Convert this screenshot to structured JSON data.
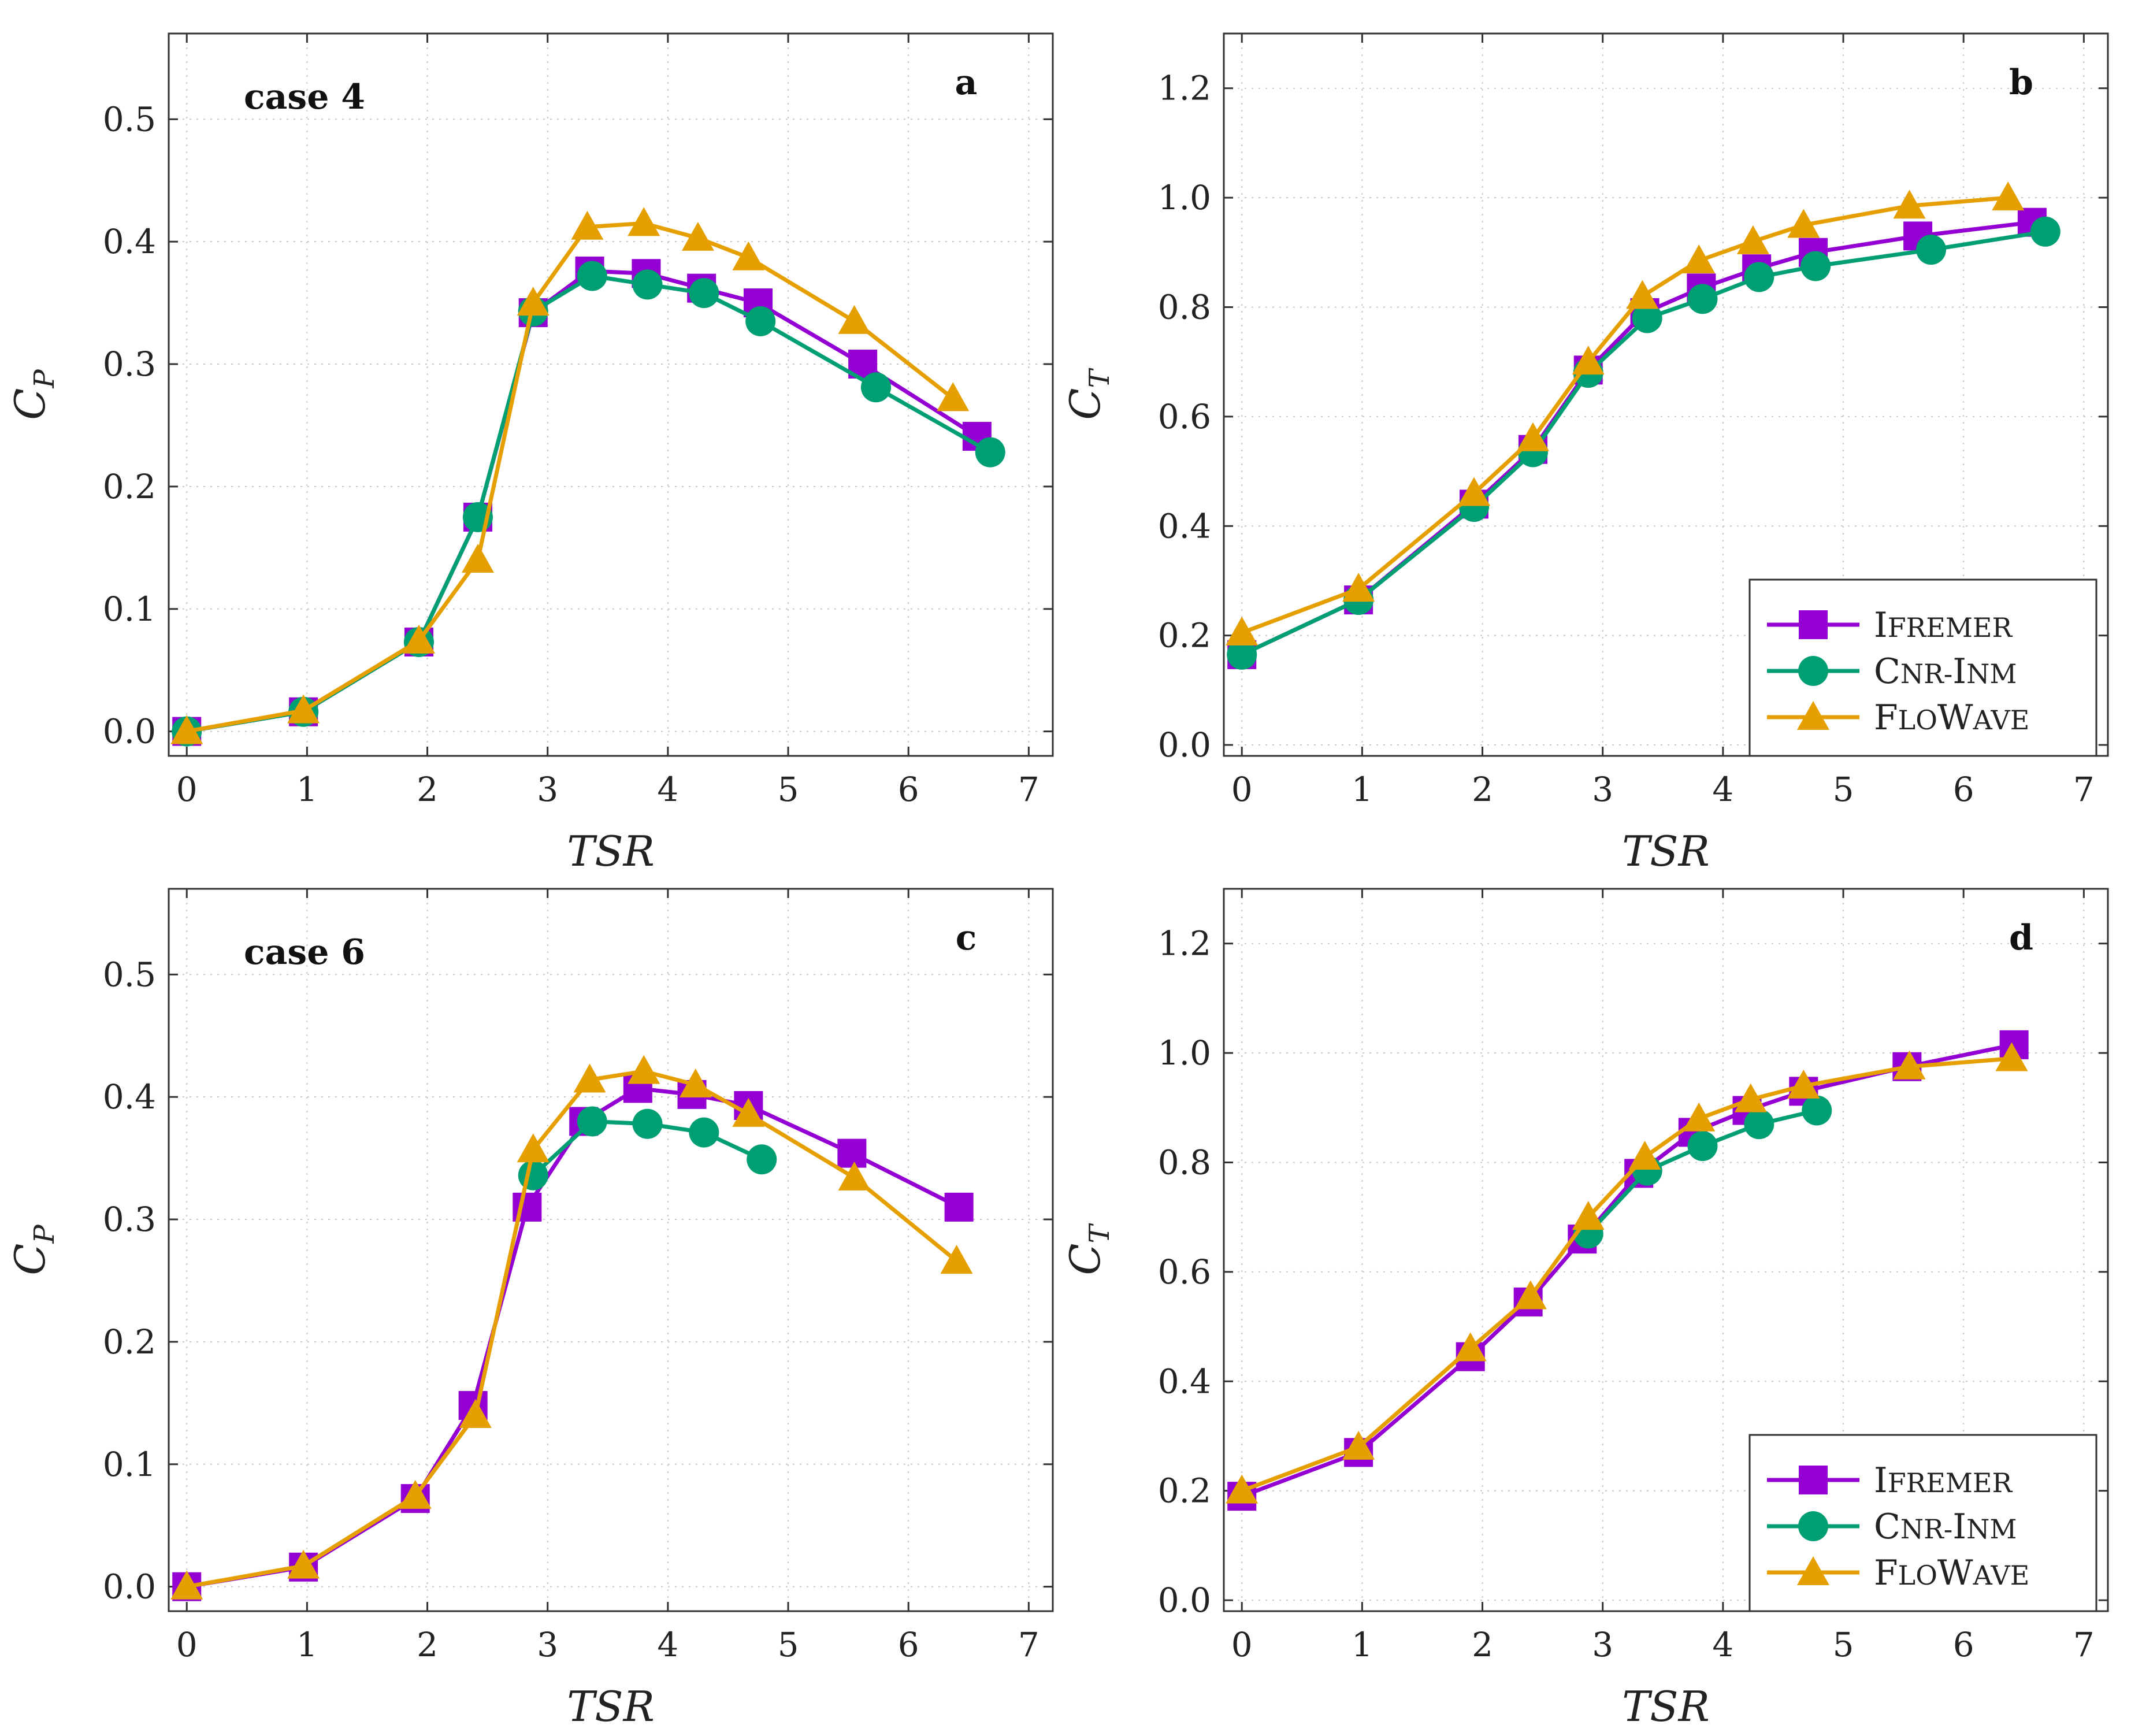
{
  "colors": {
    "Ifremer": "#9400D3",
    "Cnr-Inm": "#009E73",
    "FloWave": "#E69F00"
  },
  "chart_data": [
    {
      "type": "line",
      "panel": "a",
      "annotation": "case 4",
      "xlabel": "TSR",
      "ylabel": "C_P",
      "xlim": [
        -0.15,
        7.2
      ],
      "ylim": [
        -0.02,
        0.57
      ],
      "xticks": [
        0,
        1,
        2,
        3,
        4,
        5,
        6,
        7
      ],
      "yticks": [
        0.0,
        0.1,
        0.2,
        0.3,
        0.4,
        0.5
      ],
      "ytick_labels": [
        "0.0",
        "0.1",
        "0.2",
        "0.3",
        "0.4",
        "0.5"
      ],
      "grid": true,
      "legend": null,
      "series": [
        {
          "name": "Ifremer",
          "marker": "square",
          "x": [
            0,
            0.97,
            1.93,
            2.42,
            2.88,
            3.35,
            3.82,
            4.28,
            4.75,
            5.62,
            6.57
          ],
          "y": [
            0.0,
            0.016,
            0.073,
            0.175,
            0.342,
            0.376,
            0.374,
            0.362,
            0.35,
            0.3,
            0.241
          ]
        },
        {
          "name": "Cnr-Inm",
          "marker": "circle",
          "x": [
            0,
            0.97,
            1.93,
            2.42,
            2.88,
            3.37,
            3.83,
            4.3,
            4.77,
            5.73,
            6.68
          ],
          "y": [
            0.0,
            0.016,
            0.073,
            0.175,
            0.343,
            0.372,
            0.365,
            0.358,
            0.335,
            0.281,
            0.228
          ]
        },
        {
          "name": "FloWave",
          "marker": "triangle",
          "x": [
            0,
            0.97,
            1.93,
            2.42,
            2.88,
            3.33,
            3.8,
            4.25,
            4.67,
            5.55,
            6.37
          ],
          "y": [
            0.0,
            0.017,
            0.074,
            0.14,
            0.35,
            0.412,
            0.415,
            0.403,
            0.387,
            0.335,
            0.272
          ]
        }
      ]
    },
    {
      "type": "line",
      "panel": "b",
      "xlabel": "TSR",
      "ylabel": "C_T",
      "xlim": [
        -0.15,
        7.2
      ],
      "ylim": [
        -0.02,
        1.3
      ],
      "xticks": [
        0,
        1,
        2,
        3,
        4,
        5,
        6,
        7
      ],
      "yticks": [
        0.0,
        0.2,
        0.4,
        0.6,
        0.8,
        1.0,
        1.2
      ],
      "ytick_labels": [
        "0.0",
        "0.2",
        "0.4",
        "0.6",
        "0.8",
        "1.0",
        "1.2"
      ],
      "grid": true,
      "legend": "bottom-right",
      "series": [
        {
          "name": "Ifremer",
          "marker": "square",
          "x": [
            0,
            0.97,
            1.93,
            2.42,
            2.88,
            3.35,
            3.82,
            4.28,
            4.75,
            5.62,
            6.57
          ],
          "y": [
            0.165,
            0.265,
            0.44,
            0.54,
            0.685,
            0.79,
            0.835,
            0.87,
            0.9,
            0.93,
            0.955
          ]
        },
        {
          "name": "Cnr-Inm",
          "marker": "circle",
          "x": [
            0,
            0.97,
            1.93,
            2.42,
            2.88,
            3.37,
            3.83,
            4.3,
            4.77,
            5.73,
            6.68
          ],
          "y": [
            0.165,
            0.265,
            0.435,
            0.535,
            0.68,
            0.78,
            0.815,
            0.855,
            0.875,
            0.905,
            0.938
          ]
        },
        {
          "name": "FloWave",
          "marker": "triangle",
          "x": [
            0,
            0.97,
            1.93,
            2.42,
            2.88,
            3.33,
            3.8,
            4.25,
            4.67,
            5.55,
            6.37
          ],
          "y": [
            0.205,
            0.285,
            0.46,
            0.56,
            0.7,
            0.82,
            0.885,
            0.92,
            0.95,
            0.985,
            1.0
          ]
        }
      ]
    },
    {
      "type": "line",
      "panel": "c",
      "annotation": "case 6",
      "xlabel": "TSR",
      "ylabel": "C_P",
      "xlim": [
        -0.15,
        7.2
      ],
      "ylim": [
        -0.02,
        0.57
      ],
      "xticks": [
        0,
        1,
        2,
        3,
        4,
        5,
        6,
        7
      ],
      "yticks": [
        0.0,
        0.1,
        0.2,
        0.3,
        0.4,
        0.5
      ],
      "ytick_labels": [
        "0.0",
        "0.1",
        "0.2",
        "0.3",
        "0.4",
        "0.5"
      ],
      "grid": true,
      "legend": null,
      "series": [
        {
          "name": "Ifremer",
          "marker": "square",
          "x": [
            0,
            0.97,
            1.9,
            2.38,
            2.83,
            3.3,
            3.75,
            4.2,
            4.67,
            5.53,
            6.42
          ],
          "y": [
            0.0,
            0.016,
            0.072,
            0.148,
            0.31,
            0.38,
            0.407,
            0.402,
            0.393,
            0.354,
            0.31
          ]
        },
        {
          "name": "Cnr-Inm",
          "marker": "circle",
          "x": [
            2.88,
            3.37,
            3.83,
            4.3,
            4.78
          ],
          "y": [
            0.336,
            0.38,
            0.378,
            0.371,
            0.349
          ]
        },
        {
          "name": "FloWave",
          "marker": "triangle",
          "x": [
            0,
            0.97,
            1.9,
            2.4,
            2.88,
            3.35,
            3.8,
            4.23,
            4.67,
            5.55,
            6.4
          ],
          "y": [
            0.0,
            0.017,
            0.074,
            0.14,
            0.357,
            0.414,
            0.421,
            0.41,
            0.386,
            0.334,
            0.266
          ]
        }
      ]
    },
    {
      "type": "line",
      "panel": "d",
      "xlabel": "TSR",
      "ylabel": "C_T",
      "xlim": [
        -0.15,
        7.2
      ],
      "ylim": [
        -0.02,
        1.3
      ],
      "xticks": [
        0,
        1,
        2,
        3,
        4,
        5,
        6,
        7
      ],
      "yticks": [
        0.0,
        0.2,
        0.4,
        0.6,
        0.8,
        1.0,
        1.2
      ],
      "ytick_labels": [
        "0.0",
        "0.2",
        "0.4",
        "0.6",
        "0.8",
        "1.0",
        "1.2"
      ],
      "grid": true,
      "legend": "bottom-right",
      "series": [
        {
          "name": "Ifremer",
          "marker": "square",
          "x": [
            0,
            0.97,
            1.9,
            2.38,
            2.83,
            3.3,
            3.75,
            4.2,
            4.67,
            5.53,
            6.42
          ],
          "y": [
            0.19,
            0.27,
            0.445,
            0.545,
            0.66,
            0.78,
            0.855,
            0.895,
            0.93,
            0.975,
            1.015
          ]
        },
        {
          "name": "Cnr-Inm",
          "marker": "circle",
          "x": [
            2.88,
            3.37,
            3.83,
            4.3,
            4.78
          ],
          "y": [
            0.67,
            0.785,
            0.83,
            0.87,
            0.895
          ]
        },
        {
          "name": "FloWave",
          "marker": "triangle",
          "x": [
            0,
            0.97,
            1.9,
            2.4,
            2.88,
            3.35,
            3.8,
            4.23,
            4.67,
            5.55,
            6.4
          ],
          "y": [
            0.2,
            0.28,
            0.46,
            0.555,
            0.7,
            0.81,
            0.88,
            0.915,
            0.94,
            0.975,
            0.99
          ]
        }
      ]
    }
  ],
  "legend_entries": [
    {
      "key": "Ifremer",
      "first": "I",
      "rest": "FREMER"
    },
    {
      "key": "Cnr-Inm",
      "first": "C",
      "rest": "NR-",
      "first2": "I",
      "rest2": "NM"
    },
    {
      "key": "FloWave",
      "first": "F",
      "rest": "LO",
      "first2": "W",
      "rest2": "AVE"
    }
  ]
}
